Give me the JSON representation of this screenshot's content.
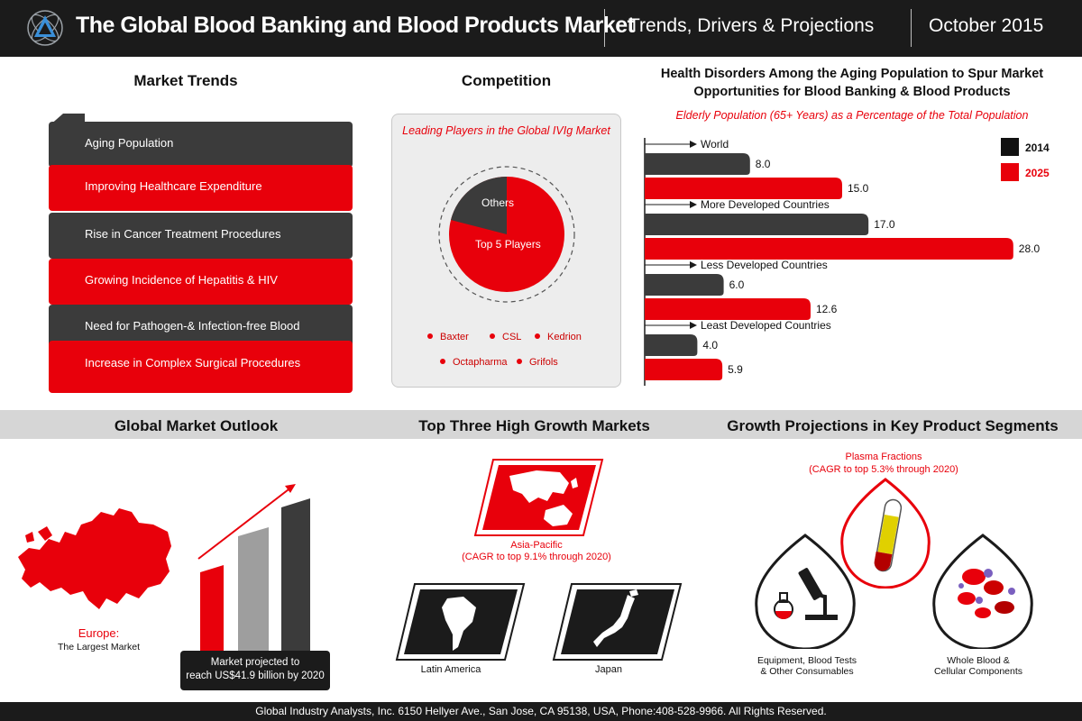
{
  "header": {
    "title": "The Global Blood Banking and Blood Products Market",
    "subtitle": "Trends, Drivers & Projections",
    "date": "October 2015"
  },
  "trends": {
    "heading": "Market Trends",
    "items": [
      "Aging  Population",
      "Improving Healthcare Expenditure",
      "Rise in Cancer Treatment Procedures",
      "Growing Incidence of  Hepatitis & HIV",
      "Need for Pathogen-& Infection-free Blood",
      "Increase in Complex Surgical  Procedures"
    ]
  },
  "competition": {
    "heading": "Competition",
    "subtitle": "Leading Players in the Global IVIg Market",
    "pie_labels": [
      "Others",
      "Top 5 Players"
    ],
    "players": [
      "Baxter",
      "CSL",
      "Kedrion",
      "Octapharma",
      "Grifols"
    ]
  },
  "health": {
    "title_line1": "Health Disorders Among the Aging Population to Spur Market",
    "title_line2": "Opportunities for Blood Banking & Blood Products",
    "subtitle": "Elderly Population (65+ Years) as a Percentage of the Total Population"
  },
  "chart_data": {
    "type": "bar",
    "orientation": "horizontal",
    "categories": [
      "World",
      "More Developed Countries",
      "Less Developed Countries",
      "Least Developed Countries"
    ],
    "series": [
      {
        "name": "2014",
        "values": [
          8.0,
          17.0,
          6.0,
          4.0
        ],
        "color": "#3b3b3b"
      },
      {
        "name": "2025",
        "values": [
          15.0,
          28.0,
          12.6,
          5.9
        ],
        "color": "#e8000b"
      }
    ],
    "value_labels": {
      "2014": [
        "8.0",
        "17.0",
        "6.0",
        "4.0"
      ],
      "2025": [
        "15.0",
        "28.0",
        "12.6",
        "5.9"
      ]
    },
    "xlim": [
      0,
      30
    ],
    "grid": false,
    "legend_position": "top-right"
  },
  "outlook": {
    "heading": "Global Market Outlook",
    "region": "Europe:",
    "region_note": "The Largest Market",
    "projection_line1": "Market projected to",
    "projection_line2": "reach US$41.9 billion by 2020"
  },
  "growth_markets": {
    "heading": "Top Three High Growth Markets",
    "asia_name": "Asia-Pacific",
    "asia_cagr": "(CAGR to top 9.1% through 2020)",
    "latin": "Latin America",
    "japan": "Japan"
  },
  "segments": {
    "heading": "Growth Projections in Key Product Segments",
    "plasma_name": "Plasma Fractions",
    "plasma_cagr": "(CAGR to top 5.3% through 2020)",
    "equip_line1": "Equipment, Blood Tests",
    "equip_line2": "& Other Consumables",
    "whole_line1": "Whole Blood &",
    "whole_line2": "Cellular Components"
  },
  "footer": {
    "text": "Global Industry Analysts, Inc. 6150 Hellyer Ave., San Jose, CA 95138, USA, Phone:408-528-9966. All Rights Reserved."
  },
  "colors": {
    "accent": "#e8000b",
    "dark": "#3b3b3b",
    "header": "#1b1b1b"
  }
}
